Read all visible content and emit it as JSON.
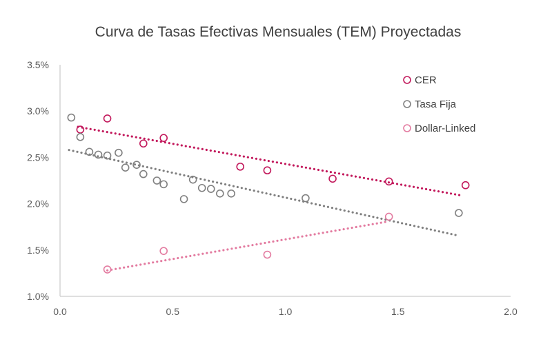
{
  "chart_data": {
    "type": "scatter",
    "title": "Curva de Tasas Efectivas Mensuales (TEM) Proyectadas",
    "xlabel": "",
    "ylabel": "",
    "xlim": [
      0.0,
      2.0
    ],
    "ylim": [
      0.01,
      0.035
    ],
    "x_ticks": [
      0.0,
      0.5,
      1.0,
      1.5,
      2.0
    ],
    "x_tick_labels": [
      "0.0",
      "0.5",
      "1.0",
      "1.5",
      "2.0"
    ],
    "y_ticks": [
      0.01,
      0.015,
      0.02,
      0.025,
      0.03,
      0.035
    ],
    "y_tick_labels": [
      "1.0%",
      "1.5%",
      "2.0%",
      "2.5%",
      "3.0%",
      "3.5%"
    ],
    "grid": false,
    "legend_position": "top-right",
    "series": [
      {
        "name": "CER",
        "color": "#c2185b",
        "points": [
          {
            "x": 0.09,
            "y": 0.028
          },
          {
            "x": 0.21,
            "y": 0.0292
          },
          {
            "x": 0.37,
            "y": 0.0265
          },
          {
            "x": 0.46,
            "y": 0.0271
          },
          {
            "x": 0.8,
            "y": 0.024
          },
          {
            "x": 0.92,
            "y": 0.0236
          },
          {
            "x": 1.21,
            "y": 0.0227
          },
          {
            "x": 1.46,
            "y": 0.0224
          },
          {
            "x": 1.8,
            "y": 0.022
          }
        ],
        "trendline": {
          "x": [
            0.08,
            1.78
          ],
          "y": [
            0.0283,
            0.0209
          ]
        }
      },
      {
        "name": "Tasa Fija",
        "color": "#808080",
        "points": [
          {
            "x": 0.05,
            "y": 0.0293
          },
          {
            "x": 0.09,
            "y": 0.0272
          },
          {
            "x": 0.13,
            "y": 0.0256
          },
          {
            "x": 0.17,
            "y": 0.0253
          },
          {
            "x": 0.21,
            "y": 0.0252
          },
          {
            "x": 0.26,
            "y": 0.0255
          },
          {
            "x": 0.29,
            "y": 0.0239
          },
          {
            "x": 0.34,
            "y": 0.0242
          },
          {
            "x": 0.37,
            "y": 0.0232
          },
          {
            "x": 0.43,
            "y": 0.0225
          },
          {
            "x": 0.46,
            "y": 0.0221
          },
          {
            "x": 0.55,
            "y": 0.0205
          },
          {
            "x": 0.59,
            "y": 0.0226
          },
          {
            "x": 0.63,
            "y": 0.0217
          },
          {
            "x": 0.67,
            "y": 0.0216
          },
          {
            "x": 0.71,
            "y": 0.0211
          },
          {
            "x": 0.76,
            "y": 0.0211
          },
          {
            "x": 1.09,
            "y": 0.0206
          },
          {
            "x": 1.77,
            "y": 0.019
          }
        ],
        "trendline": {
          "x": [
            0.04,
            1.76
          ],
          "y": [
            0.0258,
            0.0166
          ]
        }
      },
      {
        "name": "Dollar-Linked",
        "color": "#e37ba0",
        "points": [
          {
            "x": 0.21,
            "y": 0.0129
          },
          {
            "x": 0.46,
            "y": 0.0149
          },
          {
            "x": 0.92,
            "y": 0.0145
          },
          {
            "x": 1.46,
            "y": 0.0186
          }
        ],
        "trendline": {
          "x": [
            0.21,
            1.46
          ],
          "y": [
            0.0128,
            0.0181
          ]
        }
      }
    ]
  }
}
